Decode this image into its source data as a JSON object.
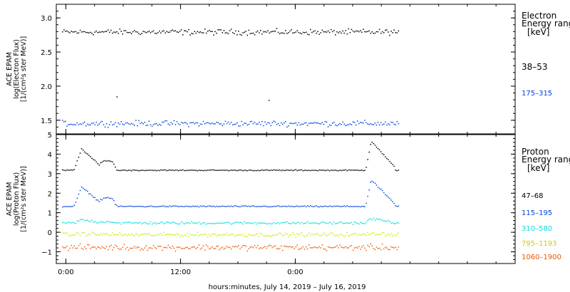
{
  "chart_data": [
    {
      "type": "scatter",
      "panel": "electron",
      "ylabel": [
        "ACE EPAM",
        "log(Electron Flux)",
        "[1/(cm²s ster MeV)]"
      ],
      "ylim": [
        1.3,
        3.2
      ],
      "yticks": [
        1.5,
        2.0,
        2.5,
        3.0
      ],
      "ytick_labels": [
        "1.5",
        "2.0",
        "2.5",
        "3.0"
      ],
      "legend_title": [
        "Electron",
        "Energy range",
        "[keV]"
      ],
      "series": [
        {
          "name": "38–53",
          "color": "#000000",
          "mean": 2.8,
          "jitter": 0.06
        },
        {
          "name": "175–315",
          "color": "#0044dd",
          "mean": 1.46,
          "jitter": 0.06
        }
      ],
      "outliers": [
        [
          5.3,
          1.85
        ],
        [
          21.2,
          1.8
        ]
      ]
    },
    {
      "type": "scatter",
      "panel": "proton",
      "ylabel": [
        "ACE EPAM",
        "log(Proton Flux)",
        "[1/(cm²s ster MeV)]"
      ],
      "ylim": [
        -1.6,
        5.0
      ],
      "yticks": [
        -1,
        0,
        1,
        2,
        3,
        4,
        5
      ],
      "ytick_labels": [
        "−1",
        "0",
        "1",
        "2",
        "3",
        "4",
        "5"
      ],
      "legend_title": [
        "Proton",
        "Energy range",
        "[keV]"
      ],
      "series": [
        {
          "name": "47–68",
          "color": "#000000",
          "mean": 3.2,
          "jitter": 0.04
        },
        {
          "name": "115–195",
          "color": "#0044dd",
          "mean": 1.35,
          "jitter": 0.05
        },
        {
          "name": "310–580",
          "color": "#00dddd",
          "mean": 0.5,
          "jitter": 0.1
        },
        {
          "name": "795–1193",
          "color": "#ccee00",
          "mean": -0.1,
          "jitter": 0.15
        },
        {
          "name": "1060–1900",
          "color": "#ee5500",
          "mean": -0.75,
          "jitter": 0.22
        }
      ]
    }
  ],
  "x_axis": {
    "range_hours": [
      -1,
      47
    ],
    "data_end_hour": 34.9,
    "ticks": [
      0,
      12,
      24
    ],
    "tick_labels": [
      "0:00",
      "12:00",
      "0:00"
    ],
    "xlabel": "hours:minutes, July 14, 2019 – July 16, 2019"
  }
}
